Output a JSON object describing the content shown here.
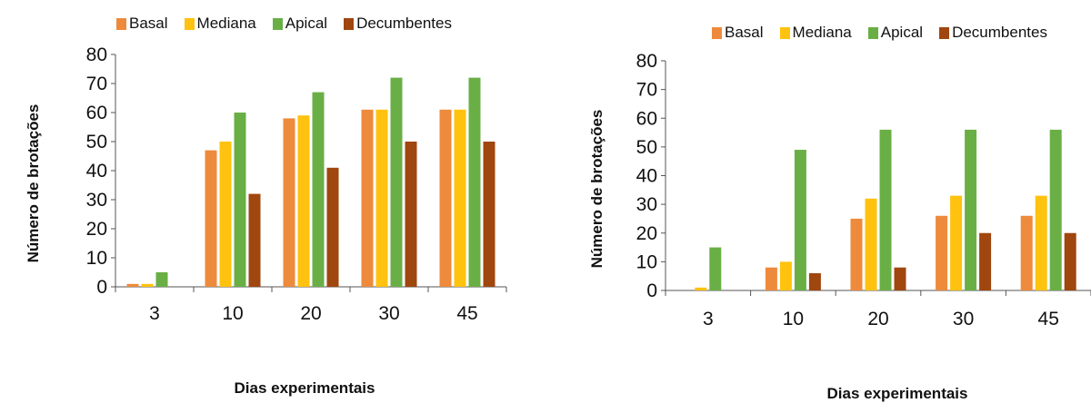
{
  "chart_data": [
    {
      "type": "bar",
      "categories": [
        "3",
        "10",
        "20",
        "30",
        "45"
      ],
      "series": [
        {
          "name": "Basal",
          "values": [
            1,
            47,
            58,
            61,
            61
          ]
        },
        {
          "name": "Mediana",
          "values": [
            1,
            50,
            59,
            61,
            61
          ]
        },
        {
          "name": "Apical",
          "values": [
            5,
            60,
            67,
            72,
            72
          ]
        },
        {
          "name": "Decumbentes",
          "values": [
            0,
            32,
            41,
            50,
            50
          ]
        }
      ],
      "colors": [
        "#ee8a3c",
        "#ffc20e",
        "#6aaf45",
        "#a0460f"
      ],
      "xlabel": "Dias experimentais",
      "ylabel": "Número de brotações",
      "ylim": [
        0,
        80
      ],
      "yticks": [
        "0",
        "10",
        "20",
        "30",
        "40",
        "50",
        "60",
        "70",
        "80"
      ],
      "legend_position": "top",
      "grid": false
    },
    {
      "type": "bar",
      "categories": [
        "3",
        "10",
        "20",
        "30",
        "45"
      ],
      "series": [
        {
          "name": "Basal",
          "values": [
            0,
            8,
            25,
            26,
            26
          ]
        },
        {
          "name": "Mediana",
          "values": [
            1,
            10,
            32,
            33,
            33
          ]
        },
        {
          "name": "Apical",
          "values": [
            15,
            49,
            56,
            56,
            56
          ]
        },
        {
          "name": "Decumbentes",
          "values": [
            0,
            6,
            8,
            20,
            20
          ]
        }
      ],
      "colors": [
        "#ee8a3c",
        "#ffc20e",
        "#6aaf45",
        "#a0460f"
      ],
      "xlabel": "Dias experimentais",
      "ylabel": "Número de brotações",
      "ylim": [
        0,
        80
      ],
      "yticks": [
        "0",
        "10",
        "20",
        "30",
        "40",
        "50",
        "60",
        "70",
        "80"
      ],
      "legend_position": "top",
      "grid": false
    }
  ]
}
